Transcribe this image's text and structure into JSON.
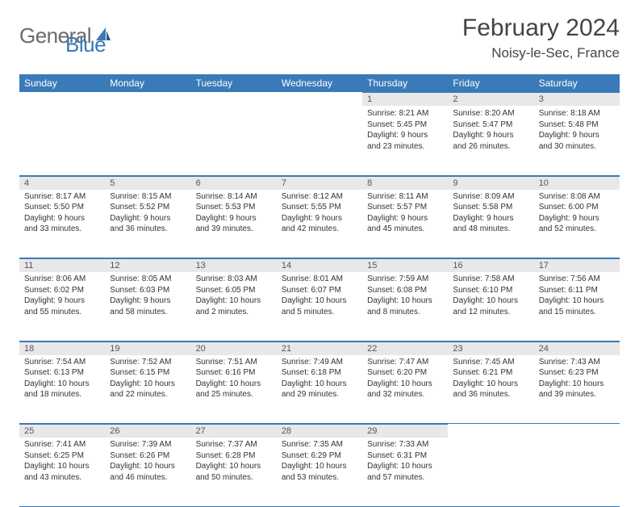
{
  "logo": {
    "text1": "General",
    "text2": "Blue"
  },
  "title": "February 2024",
  "location": "Noisy-le-Sec, France",
  "colors": {
    "brand_blue": "#3a7ab8",
    "header_text": "#ffffff",
    "daynum_bg": "#e8e8e8",
    "body_text": "#333333",
    "logo_gray": "#6a6a6a"
  },
  "weekdays": [
    "Sunday",
    "Monday",
    "Tuesday",
    "Wednesday",
    "Thursday",
    "Friday",
    "Saturday"
  ],
  "weeks": [
    [
      null,
      null,
      null,
      null,
      {
        "n": "1",
        "sr": "8:21 AM",
        "ss": "5:45 PM",
        "dl": "9 hours and 23 minutes."
      },
      {
        "n": "2",
        "sr": "8:20 AM",
        "ss": "5:47 PM",
        "dl": "9 hours and 26 minutes."
      },
      {
        "n": "3",
        "sr": "8:18 AM",
        "ss": "5:48 PM",
        "dl": "9 hours and 30 minutes."
      }
    ],
    [
      {
        "n": "4",
        "sr": "8:17 AM",
        "ss": "5:50 PM",
        "dl": "9 hours and 33 minutes."
      },
      {
        "n": "5",
        "sr": "8:15 AM",
        "ss": "5:52 PM",
        "dl": "9 hours and 36 minutes."
      },
      {
        "n": "6",
        "sr": "8:14 AM",
        "ss": "5:53 PM",
        "dl": "9 hours and 39 minutes."
      },
      {
        "n": "7",
        "sr": "8:12 AM",
        "ss": "5:55 PM",
        "dl": "9 hours and 42 minutes."
      },
      {
        "n": "8",
        "sr": "8:11 AM",
        "ss": "5:57 PM",
        "dl": "9 hours and 45 minutes."
      },
      {
        "n": "9",
        "sr": "8:09 AM",
        "ss": "5:58 PM",
        "dl": "9 hours and 48 minutes."
      },
      {
        "n": "10",
        "sr": "8:08 AM",
        "ss": "6:00 PM",
        "dl": "9 hours and 52 minutes."
      }
    ],
    [
      {
        "n": "11",
        "sr": "8:06 AM",
        "ss": "6:02 PM",
        "dl": "9 hours and 55 minutes."
      },
      {
        "n": "12",
        "sr": "8:05 AM",
        "ss": "6:03 PM",
        "dl": "9 hours and 58 minutes."
      },
      {
        "n": "13",
        "sr": "8:03 AM",
        "ss": "6:05 PM",
        "dl": "10 hours and 2 minutes."
      },
      {
        "n": "14",
        "sr": "8:01 AM",
        "ss": "6:07 PM",
        "dl": "10 hours and 5 minutes."
      },
      {
        "n": "15",
        "sr": "7:59 AM",
        "ss": "6:08 PM",
        "dl": "10 hours and 8 minutes."
      },
      {
        "n": "16",
        "sr": "7:58 AM",
        "ss": "6:10 PM",
        "dl": "10 hours and 12 minutes."
      },
      {
        "n": "17",
        "sr": "7:56 AM",
        "ss": "6:11 PM",
        "dl": "10 hours and 15 minutes."
      }
    ],
    [
      {
        "n": "18",
        "sr": "7:54 AM",
        "ss": "6:13 PM",
        "dl": "10 hours and 18 minutes."
      },
      {
        "n": "19",
        "sr": "7:52 AM",
        "ss": "6:15 PM",
        "dl": "10 hours and 22 minutes."
      },
      {
        "n": "20",
        "sr": "7:51 AM",
        "ss": "6:16 PM",
        "dl": "10 hours and 25 minutes."
      },
      {
        "n": "21",
        "sr": "7:49 AM",
        "ss": "6:18 PM",
        "dl": "10 hours and 29 minutes."
      },
      {
        "n": "22",
        "sr": "7:47 AM",
        "ss": "6:20 PM",
        "dl": "10 hours and 32 minutes."
      },
      {
        "n": "23",
        "sr": "7:45 AM",
        "ss": "6:21 PM",
        "dl": "10 hours and 36 minutes."
      },
      {
        "n": "24",
        "sr": "7:43 AM",
        "ss": "6:23 PM",
        "dl": "10 hours and 39 minutes."
      }
    ],
    [
      {
        "n": "25",
        "sr": "7:41 AM",
        "ss": "6:25 PM",
        "dl": "10 hours and 43 minutes."
      },
      {
        "n": "26",
        "sr": "7:39 AM",
        "ss": "6:26 PM",
        "dl": "10 hours and 46 minutes."
      },
      {
        "n": "27",
        "sr": "7:37 AM",
        "ss": "6:28 PM",
        "dl": "10 hours and 50 minutes."
      },
      {
        "n": "28",
        "sr": "7:35 AM",
        "ss": "6:29 PM",
        "dl": "10 hours and 53 minutes."
      },
      {
        "n": "29",
        "sr": "7:33 AM",
        "ss": "6:31 PM",
        "dl": "10 hours and 57 minutes."
      },
      null,
      null
    ]
  ],
  "labels": {
    "sunrise": "Sunrise:",
    "sunset": "Sunset:",
    "daylight": "Daylight:"
  }
}
